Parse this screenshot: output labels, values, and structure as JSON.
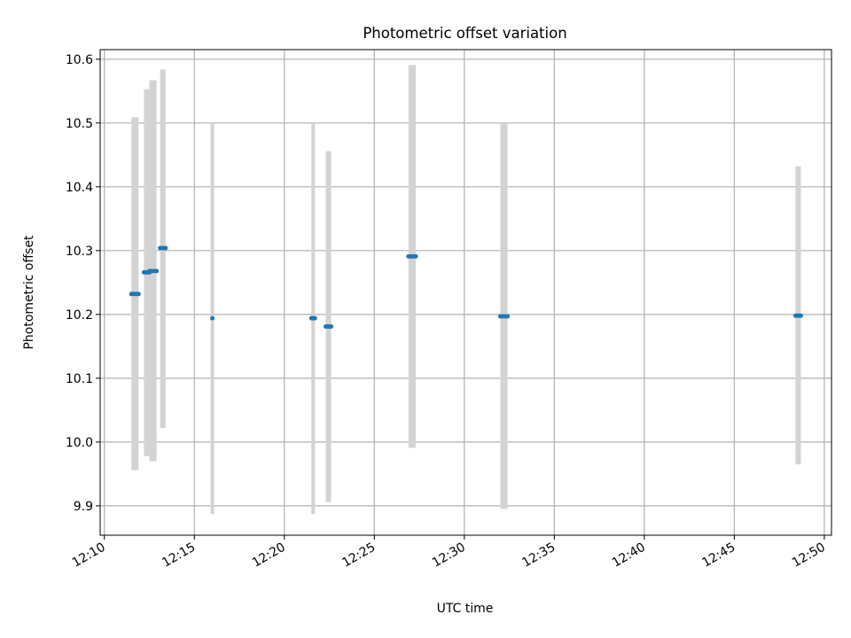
{
  "chart_data": {
    "type": "scatter",
    "title": "Photometric offset variation",
    "xlabel": "UTC time",
    "ylabel": "Photometric offset",
    "x_unit": "minutes",
    "xlim": [
      "12:09:46",
      "12:50:24"
    ],
    "ylim": [
      9.854,
      10.615
    ],
    "x_ticks": [
      "12:10",
      "12:15",
      "12:20",
      "12:25",
      "12:30",
      "12:35",
      "12:40",
      "12:45",
      "12:50"
    ],
    "y_ticks": [
      "9.9",
      "10.0",
      "10.1",
      "10.2",
      "10.3",
      "10.4",
      "10.5",
      "10.6"
    ],
    "grid": true,
    "colors": {
      "points": "#1f77b4",
      "error_bars": "#d3d3d3",
      "grid": "#b0b0b0",
      "axes": "#000000"
    },
    "points": [
      {
        "x_start": "12:11:30",
        "x_end": "12:11:54",
        "y": 10.232,
        "y_low": 9.956,
        "y_high": 10.509
      },
      {
        "x_start": "12:12:12",
        "x_end": "12:12:30",
        "y": 10.266,
        "y_low": 9.978,
        "y_high": 10.553
      },
      {
        "x_start": "12:12:30",
        "x_end": "12:12:54",
        "y": 10.268,
        "y_low": 9.97,
        "y_high": 10.567
      },
      {
        "x_start": "12:13:06",
        "x_end": "12:13:24",
        "y": 10.304,
        "y_low": 10.022,
        "y_high": 10.584
      },
      {
        "x_start": "12:16:00",
        "x_end": "12:16:00",
        "y": 10.194,
        "y_low": 9.887,
        "y_high": 10.5
      },
      {
        "x_start": "12:21:30",
        "x_end": "12:21:42",
        "y": 10.194,
        "y_low": 9.887,
        "y_high": 10.5
      },
      {
        "x_start": "12:22:18",
        "x_end": "12:22:36",
        "y": 10.181,
        "y_low": 9.906,
        "y_high": 10.456
      },
      {
        "x_start": "12:26:54",
        "x_end": "12:27:18",
        "y": 10.291,
        "y_low": 9.991,
        "y_high": 10.591
      },
      {
        "x_start": "12:32:00",
        "x_end": "12:32:24",
        "y": 10.197,
        "y_low": 9.895,
        "y_high": 10.5
      },
      {
        "x_start": "12:48:24",
        "x_end": "12:48:42",
        "y": 10.198,
        "y_low": 9.965,
        "y_high": 10.432
      }
    ]
  }
}
